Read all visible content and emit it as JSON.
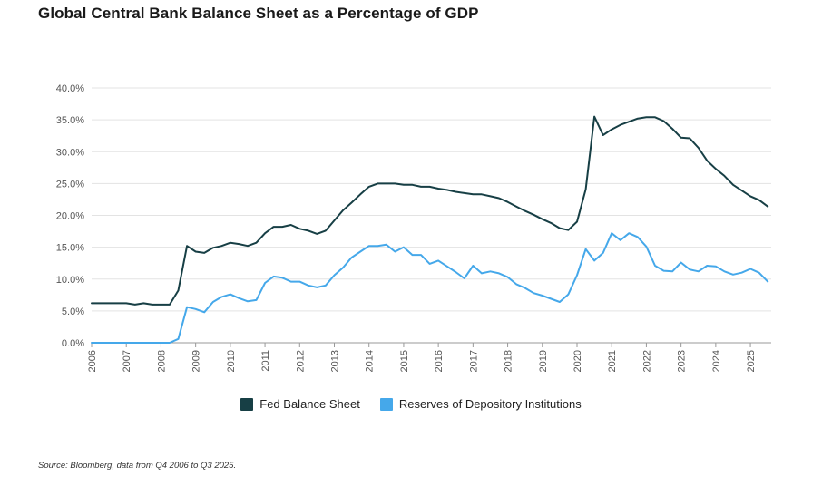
{
  "title": "Global Central Bank Balance Sheet as a Percentage of GDP",
  "source": "Source: Bloomberg, data from Q4 2006 to Q3 2025.",
  "colors": {
    "fed": "#173f45",
    "reserves": "#45a8ea",
    "grid": "#e3e3e3",
    "axis": "#999999"
  },
  "chart_data": {
    "type": "line",
    "title": "Global Central Bank Balance Sheet as a Percentage of GDP",
    "xlabel": "",
    "ylabel": "",
    "xlim": [
      2006,
      2025.6
    ],
    "ylim": [
      0,
      40
    ],
    "grid": true,
    "legend_position": "bottom",
    "x_ticks": [
      "2006",
      "2007",
      "2008",
      "2009",
      "2010",
      "2011",
      "2012",
      "2013",
      "2014",
      "2015",
      "2016",
      "2017",
      "2018",
      "2019",
      "2020",
      "2021",
      "2022",
      "2023",
      "2024",
      "2025"
    ],
    "y_ticks": [
      "0.0%",
      "5.0%",
      "10.0%",
      "15.0%",
      "20.0%",
      "25.0%",
      "30.0%",
      "35.0%",
      "40.0%"
    ],
    "series": [
      {
        "name": "Fed Balance Sheet",
        "x": [
          2006.0,
          2006.25,
          2006.5,
          2006.75,
          2007.0,
          2007.25,
          2007.5,
          2007.75,
          2008.0,
          2008.25,
          2008.5,
          2008.75,
          2009.0,
          2009.25,
          2009.5,
          2009.75,
          2010.0,
          2010.25,
          2010.5,
          2010.75,
          2011.0,
          2011.25,
          2011.5,
          2011.75,
          2012.0,
          2012.25,
          2012.5,
          2012.75,
          2013.0,
          2013.25,
          2013.5,
          2013.75,
          2014.0,
          2014.25,
          2014.5,
          2014.75,
          2015.0,
          2015.25,
          2015.5,
          2015.75,
          2016.0,
          2016.25,
          2016.5,
          2016.75,
          2017.0,
          2017.25,
          2017.5,
          2017.75,
          2018.0,
          2018.25,
          2018.5,
          2018.75,
          2019.0,
          2019.25,
          2019.5,
          2019.75,
          2020.0,
          2020.25,
          2020.5,
          2020.75,
          2021.0,
          2021.25,
          2021.5,
          2021.75,
          2022.0,
          2022.25,
          2022.5,
          2022.75,
          2023.0,
          2023.25,
          2023.5,
          2023.75,
          2024.0,
          2024.25,
          2024.5,
          2024.75,
          2025.0,
          2025.25,
          2025.5
        ],
        "values": [
          6.2,
          6.2,
          6.2,
          6.2,
          6.2,
          6.0,
          6.2,
          6.0,
          6.0,
          6.0,
          8.2,
          15.2,
          14.3,
          14.1,
          14.9,
          15.2,
          15.7,
          15.5,
          15.2,
          15.7,
          17.2,
          18.2,
          18.2,
          18.5,
          17.9,
          17.6,
          17.1,
          17.6,
          19.2,
          20.8,
          22.0,
          23.3,
          24.5,
          25.0,
          25.0,
          25.0,
          24.8,
          24.8,
          24.5,
          24.5,
          24.2,
          24.0,
          23.7,
          23.5,
          23.3,
          23.3,
          23.0,
          22.7,
          22.1,
          21.4,
          20.7,
          20.1,
          19.4,
          18.8,
          18.0,
          17.7,
          19.0,
          24.1,
          35.5,
          32.6,
          33.5,
          34.2,
          34.7,
          35.2,
          35.4,
          35.4,
          34.8,
          33.6,
          32.2,
          32.1,
          30.6,
          28.6,
          27.3,
          26.2,
          24.8,
          23.9,
          23.0,
          22.4,
          21.4
        ]
      },
      {
        "name": "Reserves of Depository Institutions",
        "x": [
          2006.0,
          2006.25,
          2006.5,
          2006.75,
          2007.0,
          2007.25,
          2007.5,
          2007.75,
          2008.0,
          2008.25,
          2008.5,
          2008.75,
          2009.0,
          2009.25,
          2009.5,
          2009.75,
          2010.0,
          2010.25,
          2010.5,
          2010.75,
          2011.0,
          2011.25,
          2011.5,
          2011.75,
          2012.0,
          2012.25,
          2012.5,
          2012.75,
          2013.0,
          2013.25,
          2013.5,
          2013.75,
          2014.0,
          2014.25,
          2014.5,
          2014.75,
          2015.0,
          2015.25,
          2015.5,
          2015.75,
          2016.0,
          2016.25,
          2016.5,
          2016.75,
          2017.0,
          2017.25,
          2017.5,
          2017.75,
          2018.0,
          2018.25,
          2018.5,
          2018.75,
          2019.0,
          2019.25,
          2019.5,
          2019.75,
          2020.0,
          2020.25,
          2020.5,
          2020.75,
          2021.0,
          2021.25,
          2021.5,
          2021.75,
          2022.0,
          2022.25,
          2022.5,
          2022.75,
          2023.0,
          2023.25,
          2023.5,
          2023.75,
          2024.0,
          2024.25,
          2024.5,
          2024.75,
          2025.0,
          2025.25,
          2025.5
        ],
        "values": [
          0.0,
          0.0,
          0.0,
          0.0,
          0.0,
          0.0,
          0.0,
          0.0,
          0.0,
          0.0,
          0.6,
          5.6,
          5.3,
          4.8,
          6.4,
          7.2,
          7.6,
          7.0,
          6.5,
          6.7,
          9.4,
          10.4,
          10.2,
          9.6,
          9.6,
          9.0,
          8.7,
          9.0,
          10.6,
          11.8,
          13.4,
          14.3,
          15.2,
          15.2,
          15.4,
          14.3,
          15.0,
          13.8,
          13.8,
          12.4,
          12.9,
          12.0,
          11.1,
          10.1,
          12.1,
          10.9,
          11.2,
          10.9,
          10.3,
          9.2,
          8.6,
          7.8,
          7.4,
          6.9,
          6.4,
          7.6,
          10.6,
          14.7,
          12.9,
          14.1,
          17.2,
          16.1,
          17.2,
          16.6,
          15.1,
          12.1,
          11.3,
          11.2,
          12.6,
          11.5,
          11.2,
          12.1,
          12.0,
          11.2,
          10.7,
          11.0,
          11.6,
          11.0,
          9.6
        ]
      }
    ]
  }
}
